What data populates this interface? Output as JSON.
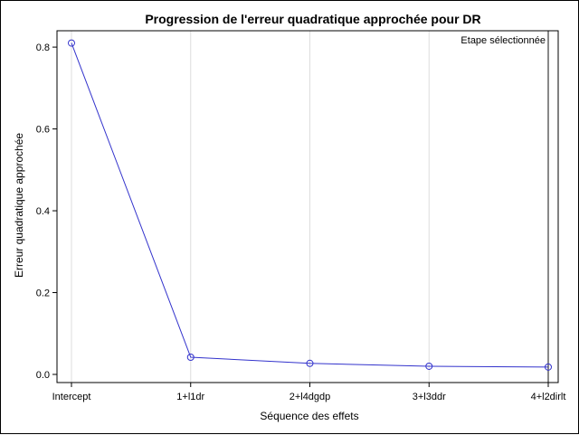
{
  "chart_data": {
    "type": "line",
    "title": "Progression de l'erreur quadratique approchée pour DR",
    "xlabel": "Séquence des effets",
    "ylabel": "Erreur quadratique approchée",
    "categories": [
      "Intercept",
      "1+l1dr",
      "2+l4dgdp",
      "3+l3ddr",
      "4+l2dirlt"
    ],
    "series": [
      {
        "values": [
          0.81,
          0.042,
          0.027,
          0.02,
          0.018
        ]
      }
    ],
    "yticks": [
      "0.0",
      "0.2",
      "0.4",
      "0.6",
      "0.8"
    ],
    "ylim": [
      0,
      0.84
    ],
    "grid": "vertical",
    "selected_step_label": "Etape sélectionnée",
    "selected_step_index": 4,
    "colors": {
      "line": "#3333cc",
      "grid": "#dddddd",
      "selected": "#888888"
    }
  }
}
